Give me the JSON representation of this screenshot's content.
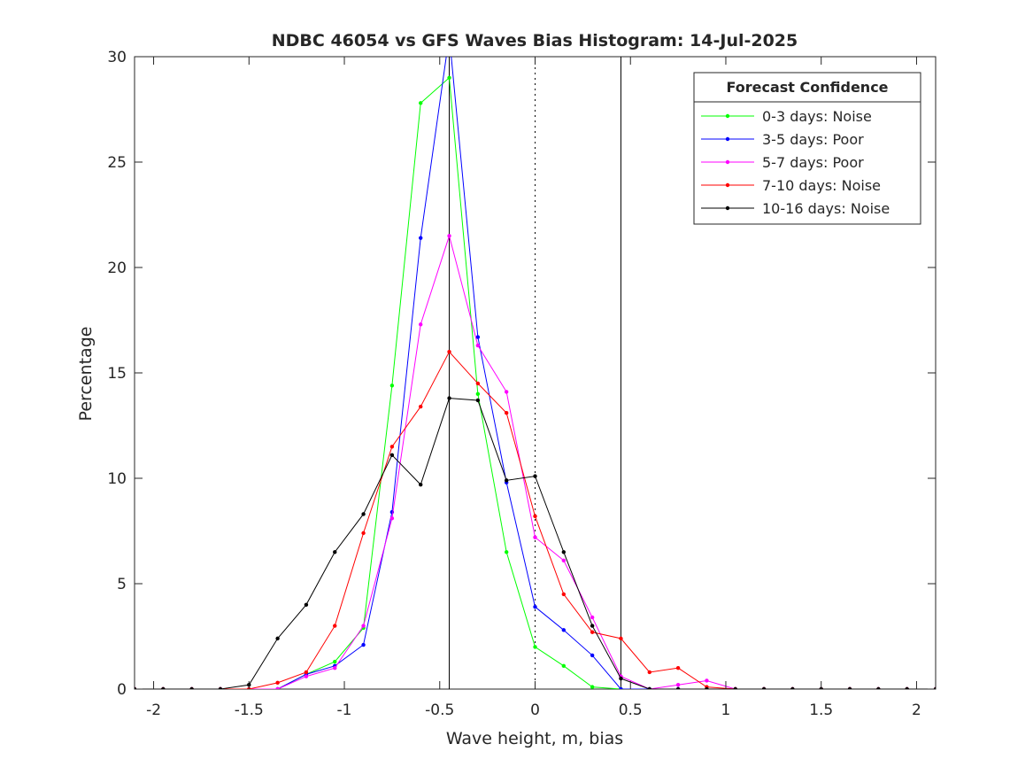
{
  "chart_data": {
    "type": "line",
    "title": "NDBC 46054 vs GFS Waves Bias Histogram: 14-Jul-2025",
    "xlabel": "Wave height, m, bias",
    "ylabel": "Percentage",
    "xlim": [
      -2.1,
      2.1
    ],
    "ylim": [
      0,
      30
    ],
    "xticks": [
      -2,
      -1.5,
      -1,
      -0.5,
      0,
      0.5,
      1,
      1.5,
      2
    ],
    "xtick_labels": [
      "-2",
      "-1.5",
      "-1",
      "-0.5",
      "0",
      "0.5",
      "1",
      "1.5",
      "2"
    ],
    "yticks": [
      0,
      5,
      10,
      15,
      20,
      25,
      30
    ],
    "ytick_labels": [
      "0",
      "5",
      "10",
      "15",
      "20",
      "25",
      "30"
    ],
    "grid": false,
    "legend_title": "Forecast Confidence",
    "legend_position": "top-right",
    "reference_lines": [
      {
        "x": -0.45,
        "style": "solid"
      },
      {
        "x": 0,
        "style": "dotted"
      },
      {
        "x": 0.45,
        "style": "solid"
      }
    ],
    "x": [
      -2.1,
      -1.95,
      -1.8,
      -1.65,
      -1.5,
      -1.35,
      -1.2,
      -1.05,
      -0.9,
      -0.75,
      -0.6,
      -0.45,
      -0.3,
      -0.15,
      0,
      0.15,
      0.3,
      0.45,
      0.6,
      0.75,
      0.9,
      1.05,
      1.2,
      1.35,
      1.5,
      1.65,
      1.8,
      1.95,
      2.1
    ],
    "series": [
      {
        "name": "0-3 days: Noise",
        "color": "#00ff00",
        "values": [
          0,
          0,
          0,
          0,
          0,
          0,
          0.7,
          1.3,
          2.9,
          14.4,
          27.8,
          29.0,
          14.0,
          6.5,
          2.0,
          1.1,
          0.1,
          0,
          0,
          0,
          0,
          0,
          0,
          0,
          0,
          0,
          0,
          0,
          0
        ]
      },
      {
        "name": "3-5 days: Poor",
        "color": "#0000ff",
        "values": [
          0,
          0,
          0,
          0,
          0,
          0,
          0.7,
          1.1,
          2.1,
          8.4,
          21.4,
          31.0,
          16.7,
          9.8,
          3.9,
          2.8,
          1.6,
          0,
          0,
          0,
          0,
          0,
          0,
          0,
          0,
          0,
          0,
          0,
          0
        ]
      },
      {
        "name": "5-7 days: Poor",
        "color": "#ff00ff",
        "values": [
          0,
          0,
          0,
          0,
          0,
          0,
          0.6,
          1.0,
          3.0,
          8.1,
          17.3,
          21.5,
          16.3,
          14.1,
          7.2,
          6.1,
          3.4,
          0.6,
          0,
          0.2,
          0.4,
          0,
          0,
          0,
          0,
          0,
          0,
          0,
          0
        ]
      },
      {
        "name": "7-10 days: Noise",
        "color": "#ff0000",
        "values": [
          0,
          0,
          0,
          0,
          0,
          0.3,
          0.8,
          3.0,
          7.4,
          11.5,
          13.4,
          16.0,
          14.5,
          13.1,
          8.2,
          4.5,
          2.7,
          2.4,
          0.8,
          1.0,
          0.1,
          0,
          0,
          0,
          0,
          0,
          0,
          0,
          0
        ]
      },
      {
        "name": "10-16 days: Noise",
        "color": "#000000",
        "values": [
          0,
          0,
          0,
          0,
          0.2,
          2.4,
          4.0,
          6.5,
          8.3,
          11.1,
          9.7,
          13.8,
          13.7,
          9.9,
          10.1,
          6.5,
          3.0,
          0.5,
          0,
          0,
          0,
          0,
          0,
          0,
          0,
          0,
          0,
          0,
          0
        ]
      }
    ]
  }
}
